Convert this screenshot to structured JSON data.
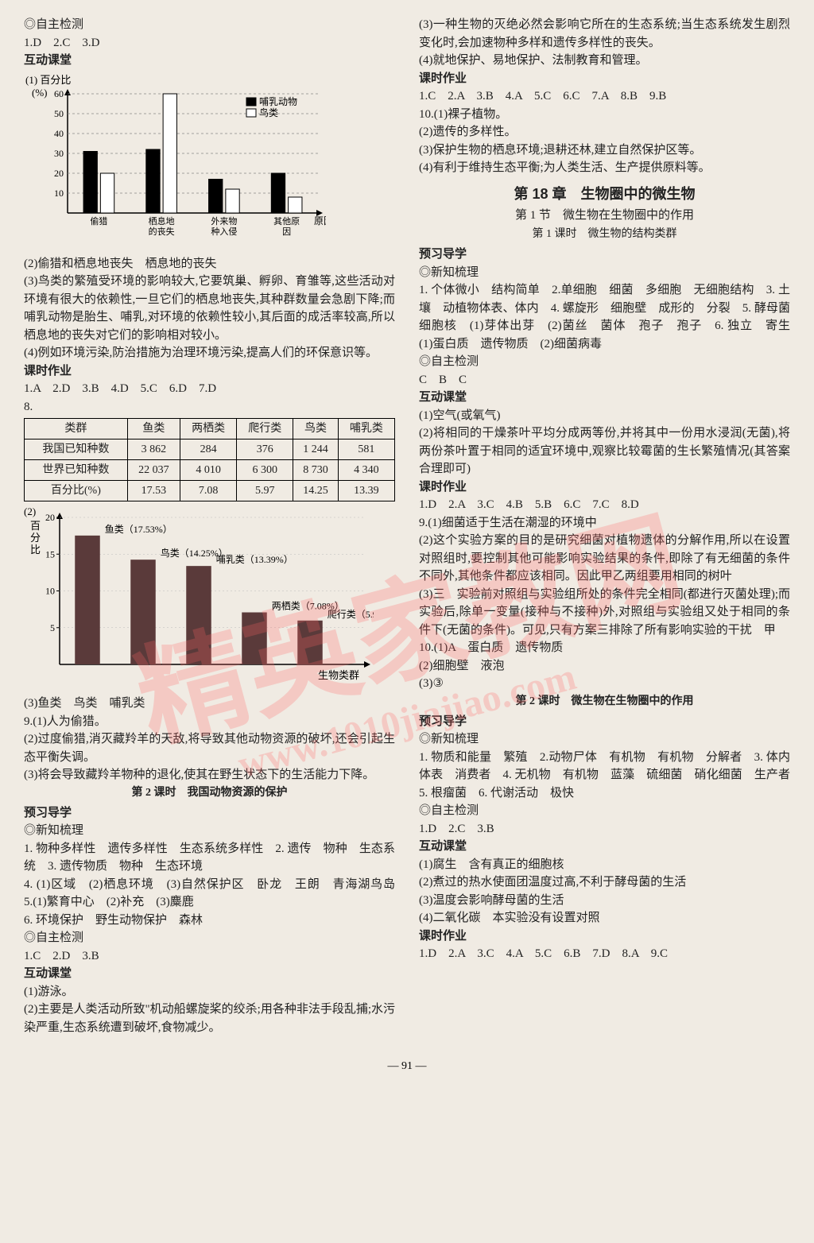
{
  "watermark": {
    "text": "精英家教网",
    "url": "www.1010jiajiao.com"
  },
  "left": {
    "heading_test": "◎自主检测",
    "test_answers": "1.D　2.C　3.D",
    "heading_class": "互动课堂",
    "chart1": {
      "ylabel_top": "(1) 百分比",
      "ylabel_unit": "(%)",
      "xlabel": "原因",
      "legend": [
        "哺乳动物",
        "鸟类"
      ],
      "legend_colors": [
        "#000000",
        "#ffffff"
      ],
      "categories": [
        "偷猎",
        "栖息地的丧失",
        "外来物种入侵",
        "其他原因"
      ],
      "mammal_values": [
        31,
        32,
        17,
        20
      ],
      "bird_values": [
        20,
        60,
        12,
        8
      ],
      "ylim": [
        0,
        60
      ],
      "ytick_step": 10,
      "bg": "#f0ebe3"
    },
    "p2": "(2)偷猎和栖息地丧失　栖息地的丧失",
    "p3": "(3)鸟类的繁殖受环境的影响较大,它要筑巢、孵卵、育雏等,这些活动对环境有很大的依赖性,一旦它们的栖息地丧失,其种群数量会急剧下降;而哺乳动物是胎生、哺乳,对环境的依赖性较小,其后面的成活率较高,所以栖息地的丧失对它们的影响相对较小。",
    "p4": "(4)例如环境污染,防治措施为治理环境污染,提高人们的环保意识等。",
    "heading_hw": "课时作业",
    "hw_answers": "1.A　2.D　3.B　4.D　5.C　6.D　7.D",
    "q8": "8.",
    "table": {
      "headers": [
        "类群",
        "鱼类",
        "两栖类",
        "爬行类",
        "鸟类",
        "哺乳类"
      ],
      "rows": [
        [
          "我国已知种数",
          "3 862",
          "284",
          "376",
          "1 244",
          "581"
        ],
        [
          "世界已知种数",
          "22 037",
          "4 010",
          "6 300",
          "8 730",
          "4 340"
        ],
        [
          "百分比(%)",
          "17.53",
          "7.08",
          "5.97",
          "14.25",
          "13.39"
        ]
      ]
    },
    "chart2": {
      "label_prefix": "(2)",
      "ylabel": "百分比",
      "xlabel": "生物类群",
      "bars": [
        {
          "label": "鱼类（17.53%）",
          "value": 17.53
        },
        {
          "label": "鸟类（14.25%）",
          "value": 14.25
        },
        {
          "label": "哺乳类（13.39%）",
          "value": 13.39
        },
        {
          "label": "两栖类（7.08%）",
          "value": 7.08
        },
        {
          "label": "爬行类（5.97%）",
          "value": 5.97
        }
      ],
      "bar_color": "#5a3a3a",
      "ylim": [
        0,
        20
      ],
      "yticks": [
        5,
        10,
        15,
        20
      ]
    },
    "p_fish": "(3)鱼类　鸟类　哺乳类",
    "q9_1": "9.(1)人为偷猎。",
    "q9_2": "(2)过度偷猎,消灭藏羚羊的天敌,将导致其他动物资源的破坏,还会引起生态平衡失调。",
    "q9_3": "(3)将会导致藏羚羊物种的退化,使其在野生状态下的生活能力下降。",
    "lesson2": "第 2 课时　我国动物资源的保护",
    "preview": "预习导学",
    "newknow": "◎新知梳理",
    "nk1": "1. 物种多样性　遗传多样性　生态系统多样性　2. 遗传　物种　生态系统　3. 遗传物质　物种　生态环境",
    "nk4": "4. (1)区域　(2)栖息环境　(3)自然保护区　卧龙　王朗　青海湖鸟岛　5.(1)繁育中心　(2)补充　(3)麋鹿",
    "nk6": "6. 环境保护　野生动物保护　森林",
    "selftest2": "◎自主检测",
    "selftest2_ans": "1.C　2.D　3.B",
    "interact2": "互动课堂",
    "swim": "(1)游泳。",
    "p_human": "(2)主要是人类活动所致\"机动船螺旋桨的绞杀;用各种非法手段乱捕;水污染严重,生态系统遭到破坏,食物减少。"
  },
  "right": {
    "p3": "(3)一种生物的灭绝必然会影响它所在的生态系统;当生态系统发生剧烈变化时,会加速物种多样和遗传多样性的丧失。",
    "p4": "(4)就地保护、易地保护、法制教育和管理。",
    "hw": "课时作业",
    "hw_ans1": "1.C　2.A　3.B　4.A　5.C　6.C　7.A　8.B　9.B",
    "q10_1": "10.(1)裸子植物。",
    "q10_2": "(2)遗传的多样性。",
    "q10_3": "(3)保护生物的栖息环境;退耕还林,建立自然保护区等。",
    "q10_4": "(4)有利于维持生态平衡;为人类生活、生产提供原料等。",
    "chapter": "第 18 章　生物圈中的微生物",
    "sub": "第 1 节　微生物在生物圈中的作用",
    "lesson": "第 1 课时　微生物的结构类群",
    "preview": "预习导学",
    "newknow": "◎新知梳理",
    "nk_line1": "1. 个体微小　结构简单　2.单细胞　细菌　多细胞　无细胞结构　3. 土壤　动植物体表、体内　4. 螺旋形　细胞壁　成形的　分裂　5. 酵母菌　细胞核　(1)芽体出芽　(2)菌丝　菌体　孢子　孢子　6. 独立　寄生　(1)蛋白质　遗传物质　(2)细菌病毒",
    "selftest": "◎自主检测",
    "selftest_ans": "C　B　C",
    "interact": "互动课堂",
    "i1": "(1)空气(或氧气)",
    "i2": "(2)将相同的干燥茶叶平均分成两等份,并将其中一份用水浸润(无菌),将两份茶叶置于相同的适宜环境中,观察比较霉菌的生长繁殖情况(其答案合理即可)",
    "hw2": "课时作业",
    "hw2_ans": "1.D　2.A　3.C　4.B　5.B　6.C　7.C　8.D",
    "q9_1": "9.(1)细菌适于生活在潮湿的环境中",
    "q9_2": "(2)这个实验方案的目的是研究细菌对植物遗体的分解作用,所以在设置对照组时,要控制其他可能影响实验结果的条件,即除了有无细菌的条件不同外,其他条件都应该相同。因此甲乙两组要用相同的树叶",
    "q9_3": "(3)三　实验前对照组与实验组所处的条件完全相同(都进行灭菌处理);而实验后,除单一变量(接种与不接种)外,对照组与实验组又处于相同的条件下(无菌的条件)。可见,只有方案三排除了所有影响实验的干扰　甲",
    "q10a": "10.(1)A　蛋白质　遗传物质",
    "q10b": "(2)细胞壁　液泡",
    "q10c": "(3)③",
    "lesson2": "第 2 课时　微生物在生物圈中的作用",
    "preview2": "预习导学",
    "newknow2": "◎新知梳理",
    "nk2_1": "1. 物质和能量　繁殖　2.动物尸体　有机物　有机物　分解者　3. 体内　体表　消费者　4. 无机物　有机物　蓝藻　硫细菌　硝化细菌　生产者　5. 根瘤菌　6. 代谢活动　极快",
    "selftest3": "◎自主检测",
    "selftest3_ans": "1.D　2.C　3.B",
    "interact3": "互动课堂",
    "i3_1": "(1)腐生　含有真正的细胞核",
    "i3_2": "(2)煮过的热水使面团温度过高,不利于酵母菌的生活",
    "i3_3": "(3)温度会影响酵母菌的生活",
    "i3_4": "(4)二氧化碳　本实验没有设置对照",
    "hw3": "课时作业",
    "hw3_ans": "1.D　2.A　3.C　4.A　5.C　6.B　7.D　8.A　9.C"
  },
  "page_num": "— 91 —"
}
